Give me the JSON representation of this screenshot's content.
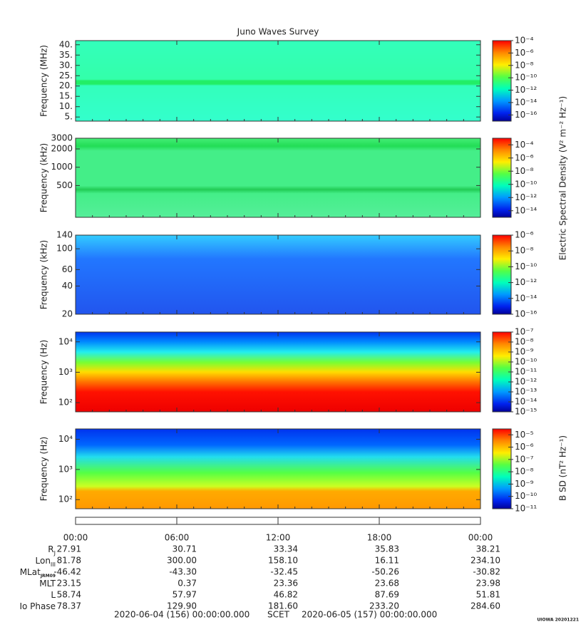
{
  "chart_data": [
    {
      "type": "spectrogram",
      "ylabel": "Frequency (MHz)",
      "ylim": [
        3,
        42
      ],
      "log": false,
      "yticks": [
        {
          "value": 40,
          "label": "40."
        },
        {
          "value": 35,
          "label": "35."
        },
        {
          "value": 30,
          "label": "30."
        },
        {
          "value": 25,
          "label": "25."
        },
        {
          "value": 20,
          "label": "20."
        },
        {
          "value": 15,
          "label": "15."
        },
        {
          "value": 10,
          "label": "10."
        },
        {
          "value": 5,
          "label": "5."
        }
      ],
      "clim": [
        1e-17,
        0.0001
      ],
      "cticks": [
        {
          "value": 0.0001,
          "label": "10⁻⁴"
        },
        {
          "value": 1e-06,
          "label": "10⁻⁶"
        },
        {
          "value": 1e-08,
          "label": "10⁻⁸"
        },
        {
          "value": 1e-10,
          "label": "10⁻¹⁰"
        },
        {
          "value": 1e-12,
          "label": "10⁻¹²"
        },
        {
          "value": 1e-14,
          "label": "10⁻¹⁴"
        },
        {
          "value": 1e-16,
          "label": "10⁻¹⁶"
        }
      ]
    },
    {
      "type": "spectrogram",
      "ylabel": "Frequency (kHz)",
      "ylim": [
        150,
        3000
      ],
      "log": true,
      "yticks": [
        3000,
        2000,
        1000,
        500
      ],
      "clim": [
        1e-15,
        0.001
      ],
      "cticks": [
        {
          "value": 0.0001,
          "label": "10⁻⁴"
        },
        {
          "value": 1e-06,
          "label": "10⁻⁶"
        },
        {
          "value": 1e-08,
          "label": "10⁻⁸"
        },
        {
          "value": 1e-10,
          "label": "10⁻¹⁰"
        },
        {
          "value": 1e-12,
          "label": "10⁻¹²"
        },
        {
          "value": 1e-14,
          "label": "10⁻¹⁴"
        }
      ]
    },
    {
      "type": "spectrogram",
      "ylabel": "Frequency (kHz)",
      "ylim": [
        20,
        140
      ],
      "log": true,
      "yticks": [
        140,
        100,
        60,
        40,
        20
      ],
      "clim": [
        1e-16,
        1e-06
      ],
      "cticks": [
        {
          "value": 1e-06,
          "label": "10⁻⁶"
        },
        {
          "value": 1e-08,
          "label": "10⁻⁸"
        },
        {
          "value": 1e-10,
          "label": "10⁻¹⁰"
        },
        {
          "value": 1e-12,
          "label": "10⁻¹²"
        },
        {
          "value": 1e-14,
          "label": "10⁻¹⁴"
        },
        {
          "value": 1e-16,
          "label": "10⁻¹⁶"
        }
      ]
    },
    {
      "type": "spectrogram",
      "ylabel": "Frequency (Hz)",
      "ylim": [
        50,
        21000
      ],
      "log": true,
      "yticks": [
        {
          "value": 10000,
          "label": "10⁴"
        },
        {
          "value": 1000,
          "label": "10³"
        },
        {
          "value": 100,
          "label": "10²"
        }
      ],
      "clim": [
        1e-15,
        1e-07
      ],
      "cticks": [
        {
          "value": 1e-07,
          "label": "10⁻⁷"
        },
        {
          "value": 1e-08,
          "label": "10⁻⁸"
        },
        {
          "value": 1e-09,
          "label": "10⁻⁹"
        },
        {
          "value": 1e-10,
          "label": "10⁻¹⁰"
        },
        {
          "value": 1e-11,
          "label": "10⁻¹¹"
        },
        {
          "value": 1e-12,
          "label": "10⁻¹²"
        },
        {
          "value": 1e-13,
          "label": "10⁻¹³"
        },
        {
          "value": 1e-14,
          "label": "10⁻¹⁴"
        },
        {
          "value": 1e-15,
          "label": "10⁻¹⁵"
        }
      ]
    },
    {
      "type": "spectrogram",
      "ylabel": "Frequency (Hz)",
      "ylim": [
        50,
        22000
      ],
      "log": true,
      "yticks": [
        {
          "value": 10000,
          "label": "10⁴"
        },
        {
          "value": 1000,
          "label": "10³"
        },
        {
          "value": 100,
          "label": "10²"
        }
      ],
      "clim": [
        1e-11,
        3e-05
      ],
      "cticks": [
        {
          "value": 1e-05,
          "label": "10⁻⁵"
        },
        {
          "value": 1e-06,
          "label": "10⁻⁶"
        },
        {
          "value": 1e-07,
          "label": "10⁻⁷"
        },
        {
          "value": 1e-08,
          "label": "10⁻⁸"
        },
        {
          "value": 1e-09,
          "label": "10⁻⁹"
        },
        {
          "value": 1e-10,
          "label": "10⁻¹⁰"
        },
        {
          "value": 1e-11,
          "label": "10⁻¹¹"
        }
      ]
    }
  ],
  "title": "Juno Waves Survey",
  "e_label": "Electric Spectral Density (V² m⁻² Hz⁻¹)",
  "b_label": "B SD (nT² Hz⁻¹)",
  "times": [
    "00:00",
    "06:00",
    "12:00",
    "18:00",
    "00:00"
  ],
  "ephemeris": [
    {
      "label": "R",
      "sub": "J",
      "values": [
        "27.91",
        "30.71",
        "33.34",
        "35.83",
        "38.21"
      ]
    },
    {
      "label": "Lon",
      "sub": "III",
      "values": [
        "81.78",
        "300.00",
        "158.10",
        "16.11",
        "234.10"
      ]
    },
    {
      "label": "MLat",
      "sub": "JRM09",
      "values": [
        "-46.42",
        "-43.30",
        "-32.45",
        "-50.26",
        "-30.82"
      ]
    },
    {
      "label": "MLT",
      "values": [
        "23.15",
        "0.37",
        "23.36",
        "23.68",
        "23.98"
      ]
    },
    {
      "label": "L",
      "values": [
        "58.74",
        "57.97",
        "46.82",
        "87.69",
        "51.81"
      ]
    },
    {
      "label": "Io Phase",
      "values": [
        "78.37",
        "129.90",
        "181.60",
        "233.20",
        "284.60"
      ]
    }
  ],
  "footer": {
    "start": "2020-06-04 (156) 00:00:00.000",
    "scet": "SCET",
    "end": "2020-06-05 (157) 00:00:00.000",
    "credit": "UIOWA 20201221"
  }
}
